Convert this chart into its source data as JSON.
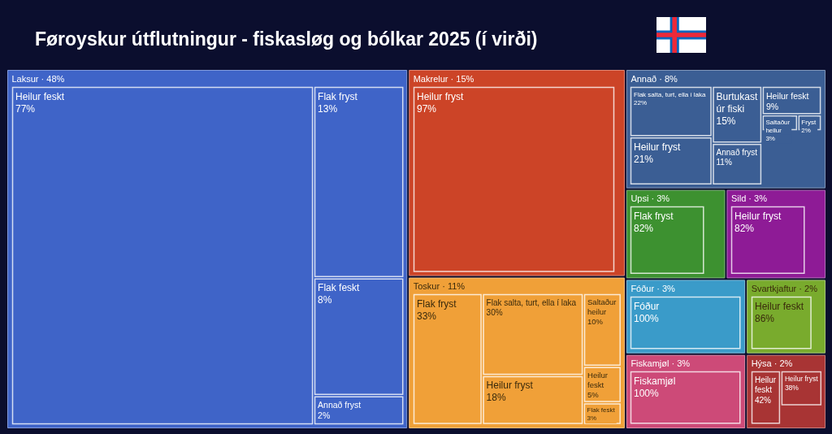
{
  "chart_data": [
    {
      "type": "other",
      "title": "Føroyskur útflutningur - fiskasløg og bólkar 2025 (í virði)",
      "categories": [
        "Laksur",
        "Makrelur",
        "Toskur",
        "Annað",
        "Upsi",
        "Sild",
        "Fóður",
        "Fiskamjøl",
        "Svartkjaftur",
        "Hýsa"
      ],
      "values": [
        48,
        15,
        11,
        8,
        3,
        3,
        3,
        3,
        2,
        2
      ],
      "value_labels": [
        "· 48%",
        "· 15%",
        "· 11%",
        "· 8%",
        "· 3%",
        "· 3%",
        "· 3%",
        "· 3%",
        "· 2%",
        "· 2%"
      ],
      "colors": [
        "#3f64c8",
        "#cc4427",
        "#f0a038",
        "#3b5e94",
        "#3d9130",
        "#8e1b96",
        "#3a9bc9",
        "#cd4a78",
        "#79ab2d",
        "#a83434"
      ]
    },
    {
      "type": "other",
      "categories": [
        "Heilur feskt",
        "Flak fryst",
        "Flak feskt",
        "Annað fryst"
      ],
      "values": [
        77,
        13,
        8,
        2
      ],
      "value_labels": [
        "77%",
        "13%",
        "8%",
        "2%"
      ]
    },
    {
      "type": "other",
      "categories": [
        "Heilur fryst"
      ],
      "values": [
        97
      ],
      "value_labels": [
        "97%"
      ]
    },
    {
      "type": "other",
      "categories": [
        "Flak fryst",
        "Flak salta, turt, ella í laka",
        "Heilur fryst",
        "Saltaður heilur",
        "Heilur feskt",
        "Flak feskt"
      ],
      "values": [
        33,
        30,
        18,
        10,
        5,
        3
      ],
      "value_labels": [
        "33%",
        "30%",
        "18%",
        "10%",
        "5%",
        "3%"
      ]
    },
    {
      "type": "other",
      "categories": [
        "Flak salta, turt, ella í laka",
        "Heilur fryst",
        "Burtukast úr fiski",
        "Annað fryst",
        "Heilur feskt",
        "Saltaður heilur",
        "Fryst"
      ],
      "values": [
        22,
        21,
        15,
        11,
        9,
        3,
        2
      ],
      "value_labels": [
        "22%",
        "21%",
        "15%",
        "11%",
        "9%",
        "3%",
        "2%"
      ]
    },
    {
      "type": "other",
      "categories": [
        "Flak fryst"
      ],
      "values": [
        82
      ],
      "value_labels": [
        "82%"
      ]
    },
    {
      "type": "other",
      "categories": [
        "Heilur fryst"
      ],
      "values": [
        82
      ],
      "value_labels": [
        "82%"
      ]
    },
    {
      "type": "other",
      "categories": [
        "Fóður"
      ],
      "values": [
        100
      ],
      "value_labels": [
        "100%"
      ]
    },
    {
      "type": "other",
      "categories": [
        "Fiskamjøl"
      ],
      "values": [
        100
      ],
      "value_labels": [
        "100%"
      ]
    },
    {
      "type": "other",
      "categories": [
        "Heilur feskt"
      ],
      "values": [
        86
      ],
      "value_labels": [
        "86%"
      ]
    },
    {
      "type": "other",
      "categories": [
        "Heilur feskt",
        "Heilur fryst"
      ],
      "values": [
        42,
        38
      ],
      "value_labels": [
        "42%",
        "38%"
      ]
    }
  ]
}
